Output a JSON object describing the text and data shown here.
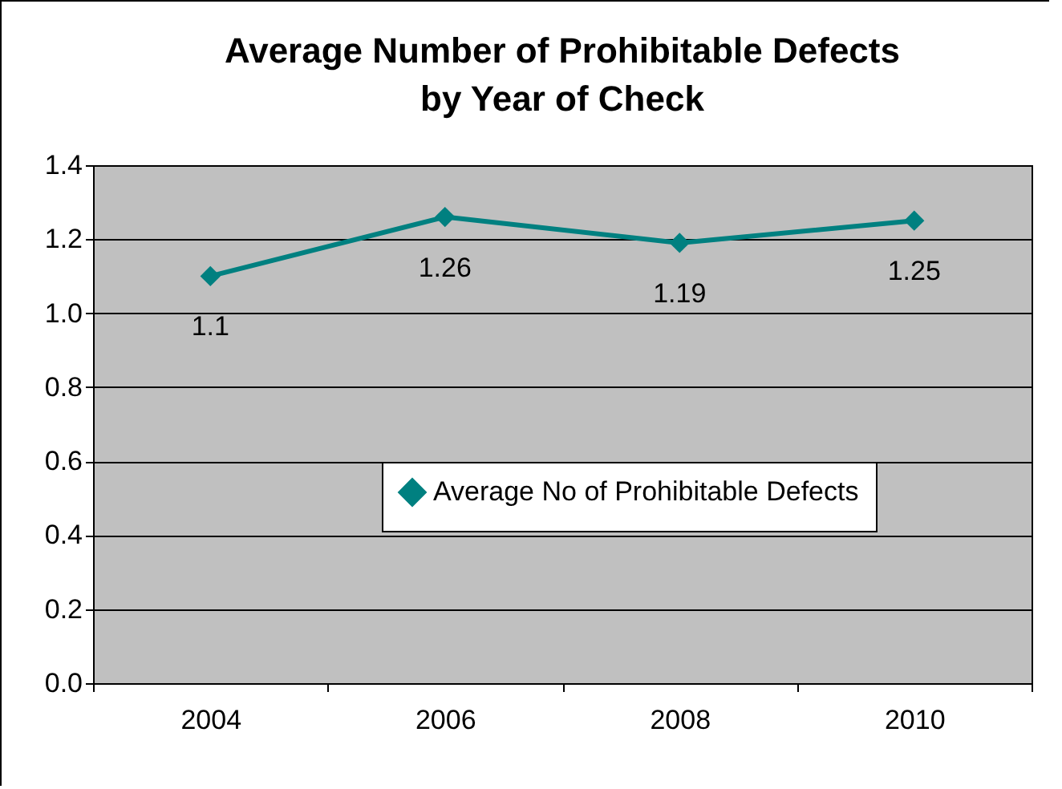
{
  "chart_data": {
    "type": "line",
    "title": "Average Number of Prohibitable Defects by Year of Check",
    "categories": [
      "2004",
      "2006",
      "2008",
      "2010"
    ],
    "series": [
      {
        "name": "Average No of Prohibitable Defects",
        "color": "#008080",
        "values": [
          1.1,
          1.26,
          1.19,
          1.25
        ]
      }
    ],
    "ylim": [
      0,
      1.4
    ],
    "yticks": [
      {
        "value": 0,
        "label": "0.0"
      },
      {
        "value": 0.2,
        "label": "0.2"
      },
      {
        "value": 0.4,
        "label": "0.4"
      },
      {
        "value": 0.6,
        "label": "0.6"
      },
      {
        "value": 0.8,
        "label": "0.8"
      },
      {
        "value": 1,
        "label": "1.0"
      },
      {
        "value": 1.2,
        "label": "1.2"
      },
      {
        "value": 1.4,
        "label": "1.4"
      }
    ],
    "grid": "y",
    "legend": "bottom",
    "marker": "diamond",
    "data_labels": true
  }
}
